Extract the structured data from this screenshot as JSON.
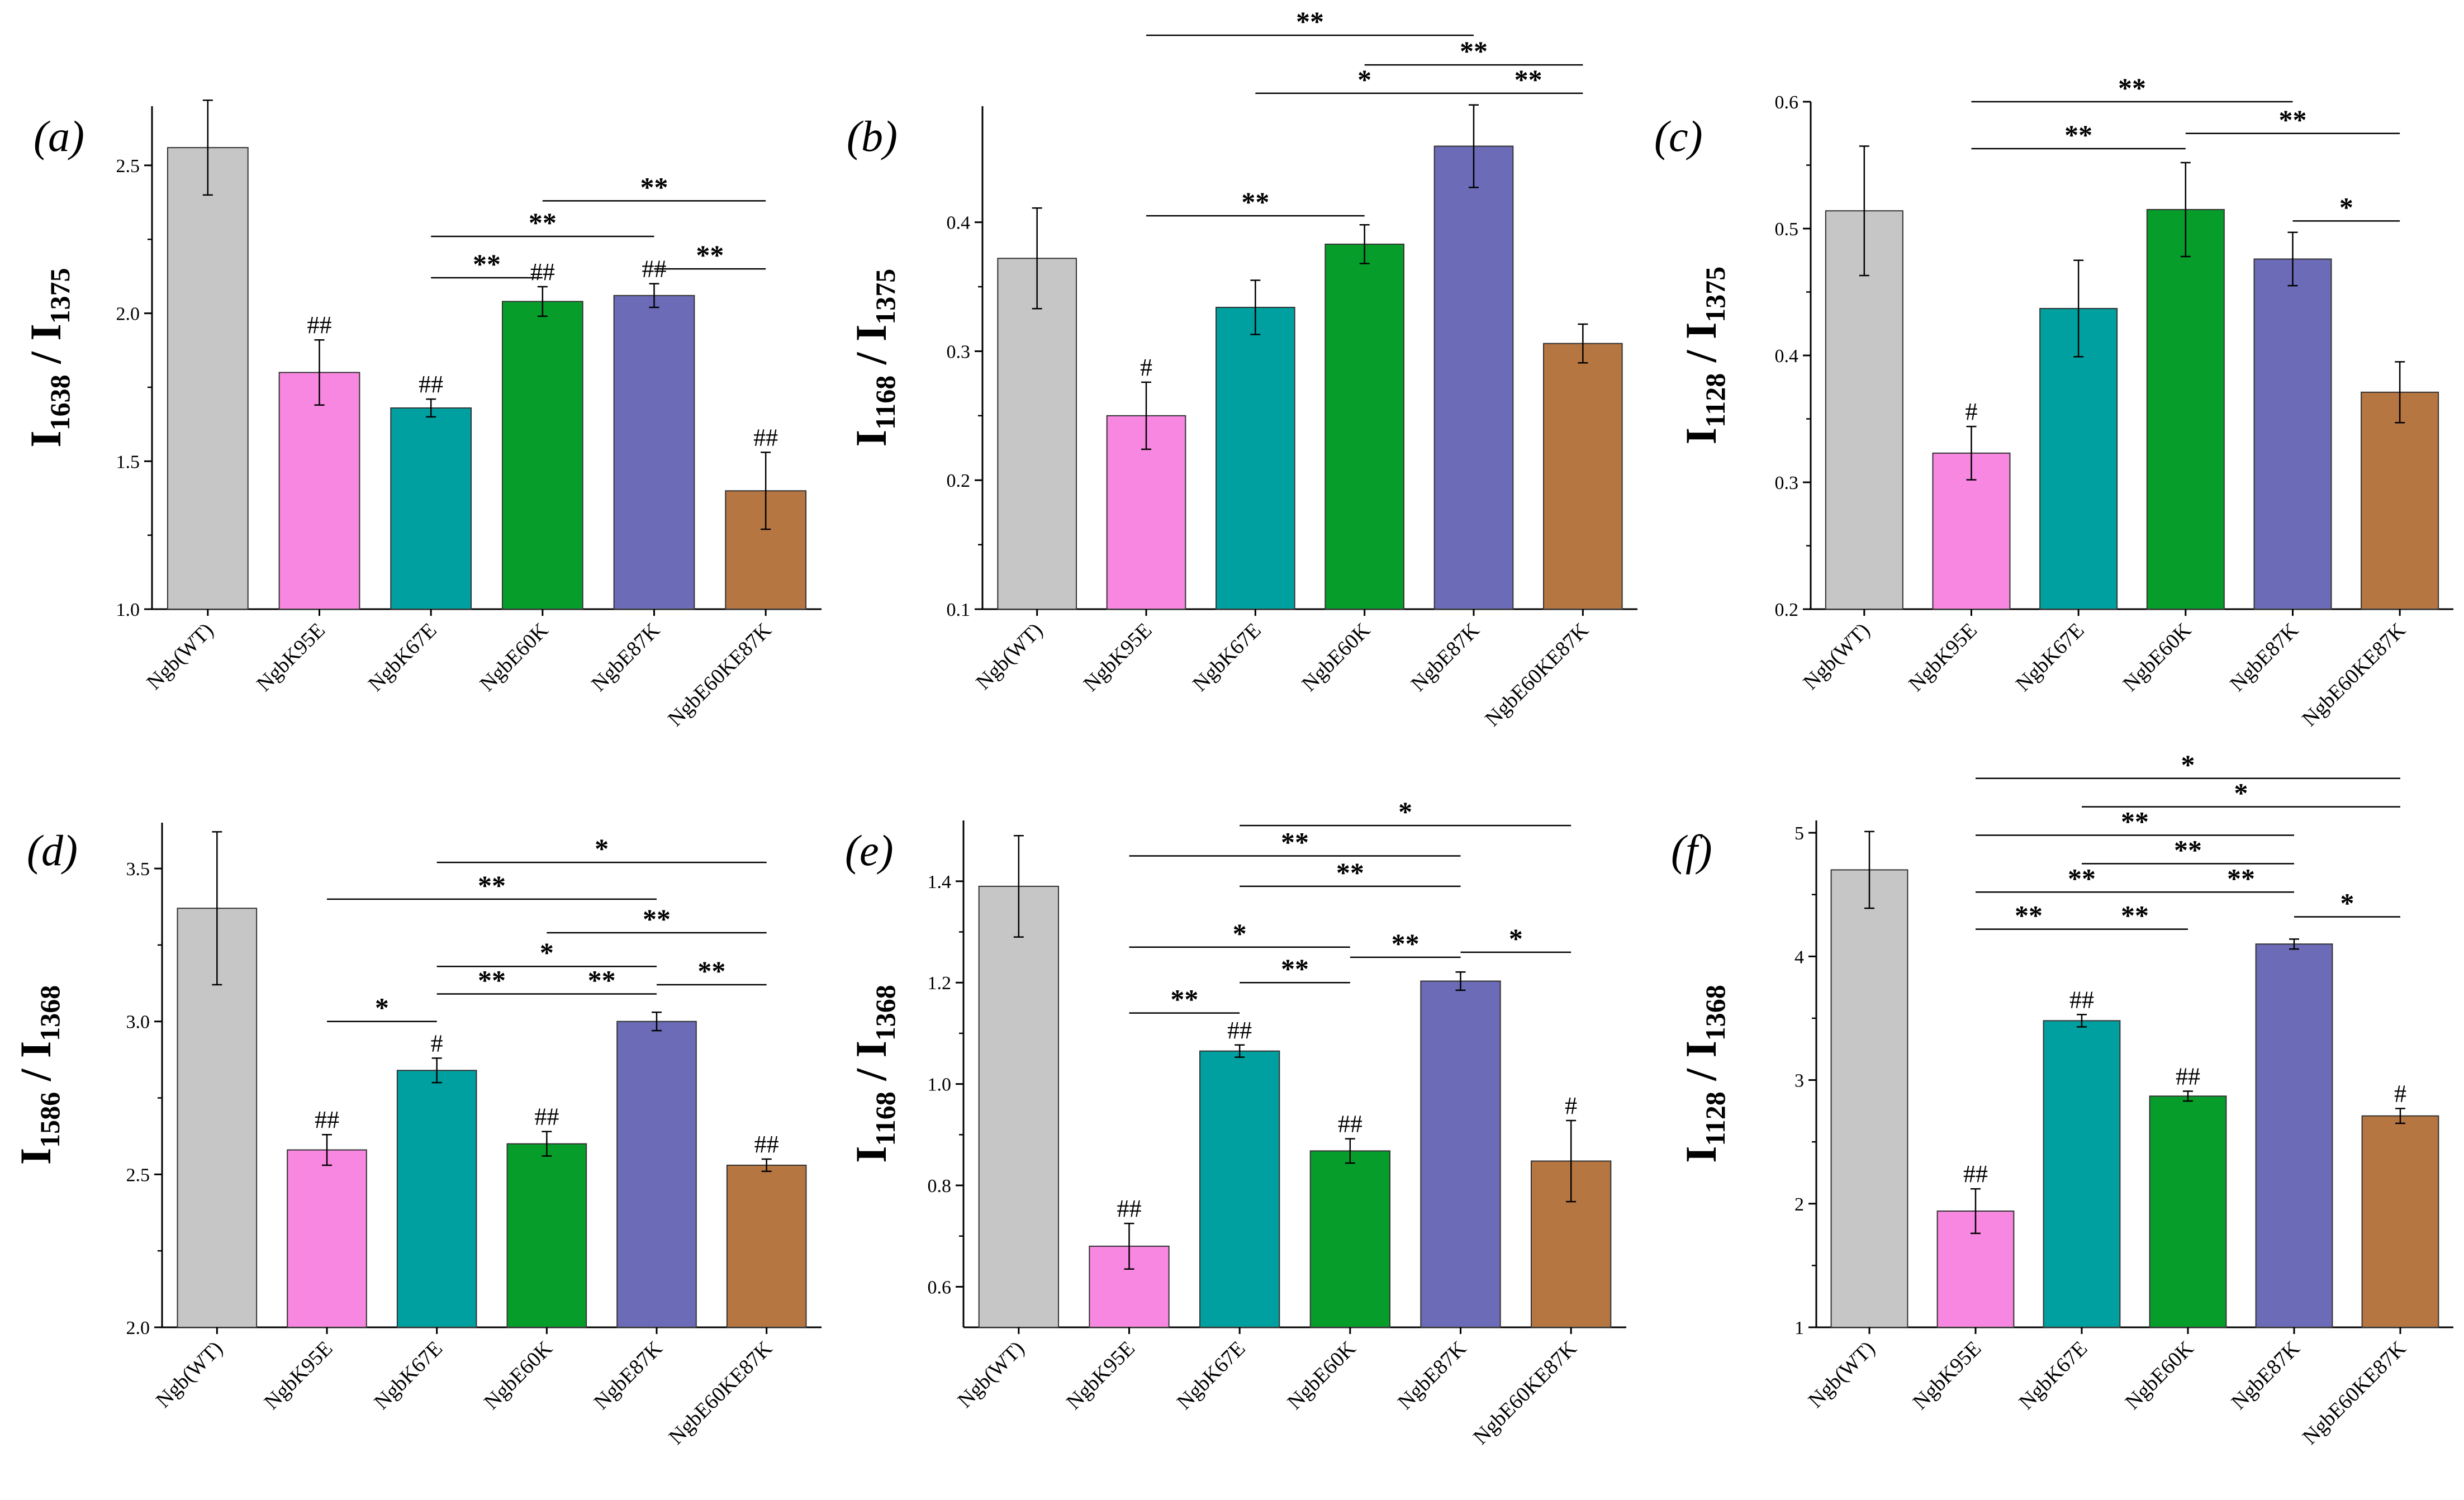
{
  "categories": [
    "Ngb(WT)",
    "NgbK95E",
    "NgbK67E",
    "NgbE60K",
    "NgbE87K",
    "NgbE60KE87K"
  ],
  "colors": [
    "#c6c6c6",
    "#f787e0",
    "#00a0a0",
    "#079d2b",
    "#6b6bb7",
    "#b67642"
  ],
  "chart_data": [
    {
      "type": "bar",
      "panel_label": "(a)",
      "ylabel_main": "I",
      "ylabel_sub1": "1638",
      "ylabel_mid": " / I",
      "ylabel_sub2": "1375",
      "ylim": [
        1.0,
        2.7
      ],
      "yticks": [
        1.0,
        1.5,
        2.0,
        2.5
      ],
      "ytick_labels": [
        "1.0",
        "1.5",
        "2.0",
        "2.5"
      ],
      "values": [
        2.56,
        1.8,
        1.68,
        2.04,
        2.06,
        1.4
      ],
      "errors": [
        0.16,
        0.11,
        0.03,
        0.05,
        0.04,
        0.13
      ],
      "annotations": [
        "",
        "##",
        "##",
        "##",
        "##",
        "##"
      ],
      "brackets": [
        {
          "from": 3,
          "to": 5,
          "level": 2.38,
          "label": "**"
        },
        {
          "from": 2,
          "to": 4,
          "level": 2.26,
          "label": "**"
        },
        {
          "from": 2,
          "to": 3,
          "level": 2.12,
          "label": "**"
        },
        {
          "from": 4,
          "to": 5,
          "level": 2.15,
          "label": "**"
        }
      ]
    },
    {
      "type": "bar",
      "panel_label": "(b)",
      "ylabel_main": "I",
      "ylabel_sub1": "1168",
      "ylabel_mid": " / I",
      "ylabel_sub2": "1375",
      "ylim": [
        0.1,
        0.49
      ],
      "yticks": [
        0.1,
        0.2,
        0.3,
        0.4
      ],
      "ytick_labels": [
        "0.1",
        "0.2",
        "0.3",
        "0.4"
      ],
      "values": [
        0.372,
        0.25,
        0.334,
        0.383,
        0.459,
        0.306
      ],
      "errors": [
        0.039,
        0.026,
        0.021,
        0.015,
        0.032,
        0.015
      ],
      "annotations": [
        "",
        "#",
        "",
        "",
        "",
        ""
      ],
      "brackets": [
        {
          "from": 1,
          "to": 4,
          "level": 0.545,
          "label": "**"
        },
        {
          "from": 3,
          "to": 5,
          "level": 0.522,
          "label": "**"
        },
        {
          "from": 2,
          "to": 4,
          "level": 0.5,
          "label": "*"
        },
        {
          "from": 4,
          "to": 5,
          "level": 0.5,
          "label": "**"
        },
        {
          "from": 1,
          "to": 3,
          "level": 0.405,
          "label": "**"
        }
      ]
    },
    {
      "type": "bar",
      "panel_label": "(c)",
      "ylabel_main": "I",
      "ylabel_sub1": "1128",
      "ylabel_mid": " / I",
      "ylabel_sub2": "1375",
      "ylim": [
        0.2,
        0.6
      ],
      "yticks": [
        0.2,
        0.3,
        0.4,
        0.5,
        0.6
      ],
      "ytick_labels": [
        "0.2",
        "0.3",
        "0.4",
        "0.5",
        "0.6"
      ],
      "values": [
        0.514,
        0.323,
        0.437,
        0.515,
        0.476,
        0.371
      ],
      "errors": [
        0.051,
        0.021,
        0.038,
        0.037,
        0.021,
        0.024
      ],
      "annotations": [
        "",
        "#",
        "",
        "",
        "",
        ""
      ],
      "brackets": [
        {
          "from": 1,
          "to": 4,
          "level": 0.6,
          "label": "**"
        },
        {
          "from": 1,
          "to": 3,
          "level": 0.563,
          "label": "**"
        },
        {
          "from": 3,
          "to": 5,
          "level": 0.575,
          "label": "**"
        },
        {
          "from": 4,
          "to": 5,
          "level": 0.506,
          "label": "*"
        }
      ]
    },
    {
      "type": "bar",
      "panel_label": "(d)",
      "ylabel_main": "I",
      "ylabel_sub1": "1586",
      "ylabel_mid": " / I",
      "ylabel_sub2": "1368",
      "ylim": [
        2.0,
        3.65
      ],
      "yticks": [
        2.0,
        2.5,
        3.0,
        3.5
      ],
      "ytick_labels": [
        "2.0",
        "2.5",
        "3.0",
        "3.5"
      ],
      "values": [
        3.37,
        2.58,
        2.84,
        2.6,
        3.0,
        2.53
      ],
      "errors": [
        0.25,
        0.05,
        0.04,
        0.04,
        0.03,
        0.02
      ],
      "annotations": [
        "",
        "##",
        "#",
        "##",
        "",
        "##"
      ],
      "brackets": [
        {
          "from": 2,
          "to": 5,
          "level": 3.52,
          "label": "*"
        },
        {
          "from": 1,
          "to": 4,
          "level": 3.4,
          "label": "**"
        },
        {
          "from": 3,
          "to": 5,
          "level": 3.29,
          "label": "**"
        },
        {
          "from": 2,
          "to": 4,
          "level": 3.18,
          "label": "*"
        },
        {
          "from": 2,
          "to": 3,
          "level": 3.09,
          "label": "**"
        },
        {
          "from": 3,
          "to": 4,
          "level": 3.09,
          "label": "**"
        },
        {
          "from": 4,
          "to": 5,
          "level": 3.12,
          "label": "**"
        },
        {
          "from": 1,
          "to": 2,
          "level": 3.0,
          "label": "*"
        }
      ]
    },
    {
      "type": "bar",
      "panel_label": "(e)",
      "ylabel_main": "I",
      "ylabel_sub1": "1168",
      "ylabel_mid": " / I",
      "ylabel_sub2": "1368",
      "ylim": [
        0.52,
        1.52
      ],
      "yticks": [
        0.6,
        0.8,
        1.0,
        1.2,
        1.4
      ],
      "ytick_labels": [
        "0.6",
        "0.8",
        "1.0",
        "1.2",
        "1.4"
      ],
      "values": [
        1.39,
        0.68,
        1.065,
        0.868,
        1.203,
        0.848
      ],
      "errors": [
        0.1,
        0.045,
        0.012,
        0.024,
        0.018,
        0.08
      ],
      "annotations": [
        "",
        "##",
        "##",
        "##",
        "",
        "#"
      ],
      "brackets": [
        {
          "from": 2,
          "to": 5,
          "level": 1.51,
          "label": "*"
        },
        {
          "from": 1,
          "to": 4,
          "level": 1.45,
          "label": "**"
        },
        {
          "from": 2,
          "to": 4,
          "level": 1.39,
          "label": "**"
        },
        {
          "from": 1,
          "to": 3,
          "level": 1.27,
          "label": "*"
        },
        {
          "from": 3,
          "to": 4,
          "level": 1.25,
          "label": "**"
        },
        {
          "from": 4,
          "to": 5,
          "level": 1.26,
          "label": "*"
        },
        {
          "from": 2,
          "to": 3,
          "level": 1.2,
          "label": "**"
        },
        {
          "from": 1,
          "to": 2,
          "level": 1.14,
          "label": "**"
        }
      ]
    },
    {
      "type": "bar",
      "panel_label": "(f)",
      "ylabel_main": "I",
      "ylabel_sub1": "1128",
      "ylabel_mid": " / I",
      "ylabel_sub2": "1368",
      "ylim": [
        1,
        5.1
      ],
      "yticks": [
        1,
        2,
        3,
        4,
        5
      ],
      "ytick_labels": [
        "1",
        "2",
        "3",
        "4",
        "5"
      ],
      "values": [
        4.7,
        1.94,
        3.48,
        2.87,
        4.1,
        2.71
      ],
      "errors": [
        0.31,
        0.18,
        0.05,
        0.04,
        0.04,
        0.06
      ],
      "annotations": [
        "",
        "##",
        "##",
        "##",
        "",
        "#"
      ],
      "brackets": [
        {
          "from": 1,
          "to": 5,
          "level": 5.44,
          "label": "*"
        },
        {
          "from": 2,
          "to": 5,
          "level": 5.21,
          "label": "*"
        },
        {
          "from": 1,
          "to": 4,
          "level": 4.98,
          "label": "**"
        },
        {
          "from": 2,
          "to": 4,
          "level": 4.75,
          "label": "**"
        },
        {
          "from": 1,
          "to": 3,
          "level": 4.52,
          "label": "**"
        },
        {
          "from": 3,
          "to": 4,
          "level": 4.52,
          "label": "**"
        },
        {
          "from": 4,
          "to": 5,
          "level": 4.32,
          "label": "*"
        },
        {
          "from": 1,
          "to": 2,
          "level": 4.22,
          "label": "**"
        },
        {
          "from": 2,
          "to": 3,
          "level": 4.22,
          "label": "**"
        }
      ]
    }
  ]
}
